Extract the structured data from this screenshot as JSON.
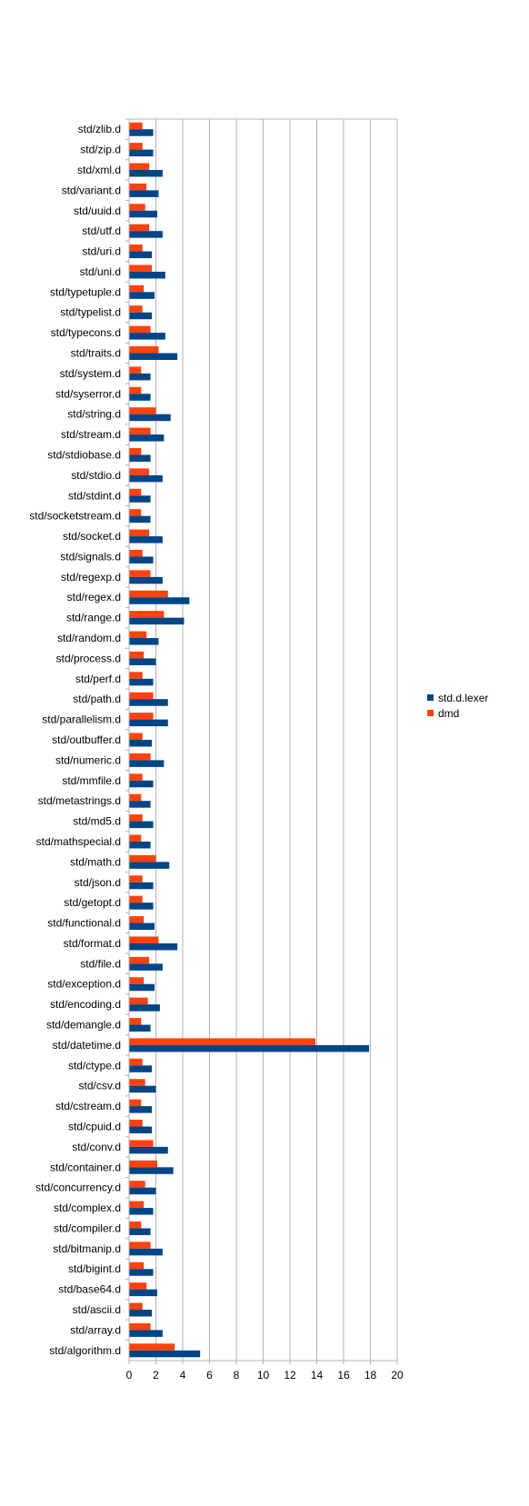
{
  "chart_data": {
    "type": "bar",
    "orientation": "horizontal",
    "categories": [
      "std/zlib.d",
      "std/zip.d",
      "std/xml.d",
      "std/variant.d",
      "std/uuid.d",
      "std/utf.d",
      "std/uri.d",
      "std/uni.d",
      "std/typetuple.d",
      "std/typelist.d",
      "std/typecons.d",
      "std/traits.d",
      "std/system.d",
      "std/syserror.d",
      "std/string.d",
      "std/stream.d",
      "std/stdiobase.d",
      "std/stdio.d",
      "std/stdint.d",
      "std/socketstream.d",
      "std/socket.d",
      "std/signals.d",
      "std/regexp.d",
      "std/regex.d",
      "std/range.d",
      "std/random.d",
      "std/process.d",
      "std/perf.d",
      "std/path.d",
      "std/parallelism.d",
      "std/outbuffer.d",
      "std/numeric.d",
      "std/mmfile.d",
      "std/metastrings.d",
      "std/md5.d",
      "std/mathspecial.d",
      "std/math.d",
      "std/json.d",
      "std/getopt.d",
      "std/functional.d",
      "std/format.d",
      "std/file.d",
      "std/exception.d",
      "std/encoding.d",
      "std/demangle.d",
      "std/datetime.d",
      "std/ctype.d",
      "std/csv.d",
      "std/cstream.d",
      "std/cpuid.d",
      "std/conv.d",
      "std/container.d",
      "std/concurrency.d",
      "std/complex.d",
      "std/compiler.d",
      "std/bitmanip.d",
      "std/bigint.d",
      "std/base64.d",
      "std/ascii.d",
      "std/array.d",
      "std/algorithm.d"
    ],
    "series": [
      {
        "name": "std.d.lexer",
        "color": "#004586",
        "values": [
          1.8,
          1.8,
          2.5,
          2.2,
          2.1,
          2.5,
          1.7,
          2.7,
          1.9,
          1.7,
          2.7,
          3.6,
          1.6,
          1.6,
          3.1,
          2.6,
          1.6,
          2.5,
          1.6,
          1.6,
          2.5,
          1.8,
          2.5,
          4.5,
          4.1,
          2.2,
          2.0,
          1.8,
          2.9,
          2.9,
          1.7,
          2.6,
          1.8,
          1.6,
          1.8,
          1.6,
          3.0,
          1.8,
          1.8,
          1.9,
          3.6,
          2.5,
          1.9,
          2.3,
          1.6,
          17.9,
          1.7,
          2.0,
          1.7,
          1.7,
          2.9,
          3.3,
          2.0,
          1.8,
          1.6,
          2.5,
          1.8,
          2.1,
          1.7,
          2.5,
          5.3
        ]
      },
      {
        "name": "dmd",
        "color": "#ff420e",
        "values": [
          1.0,
          1.0,
          1.5,
          1.3,
          1.2,
          1.5,
          1.0,
          1.7,
          1.1,
          1.0,
          1.6,
          2.2,
          0.9,
          0.9,
          2.0,
          1.6,
          0.9,
          1.5,
          0.9,
          0.9,
          1.5,
          1.0,
          1.6,
          2.9,
          2.6,
          1.3,
          1.1,
          1.0,
          1.8,
          1.8,
          1.0,
          1.6,
          1.0,
          0.9,
          1.0,
          0.9,
          2.0,
          1.0,
          1.0,
          1.1,
          2.2,
          1.5,
          1.1,
          1.4,
          0.9,
          13.9,
          1.0,
          1.2,
          0.9,
          1.0,
          1.8,
          2.1,
          1.2,
          1.1,
          0.9,
          1.6,
          1.1,
          1.3,
          1.0,
          1.6,
          3.4
        ]
      }
    ],
    "xlim": [
      0,
      20
    ],
    "x_ticks": [
      0,
      2,
      4,
      6,
      8,
      10,
      12,
      14,
      16,
      18,
      20
    ],
    "grid": "vertical",
    "legend_position": "right",
    "title": "",
    "xlabel": "",
    "ylabel": ""
  }
}
